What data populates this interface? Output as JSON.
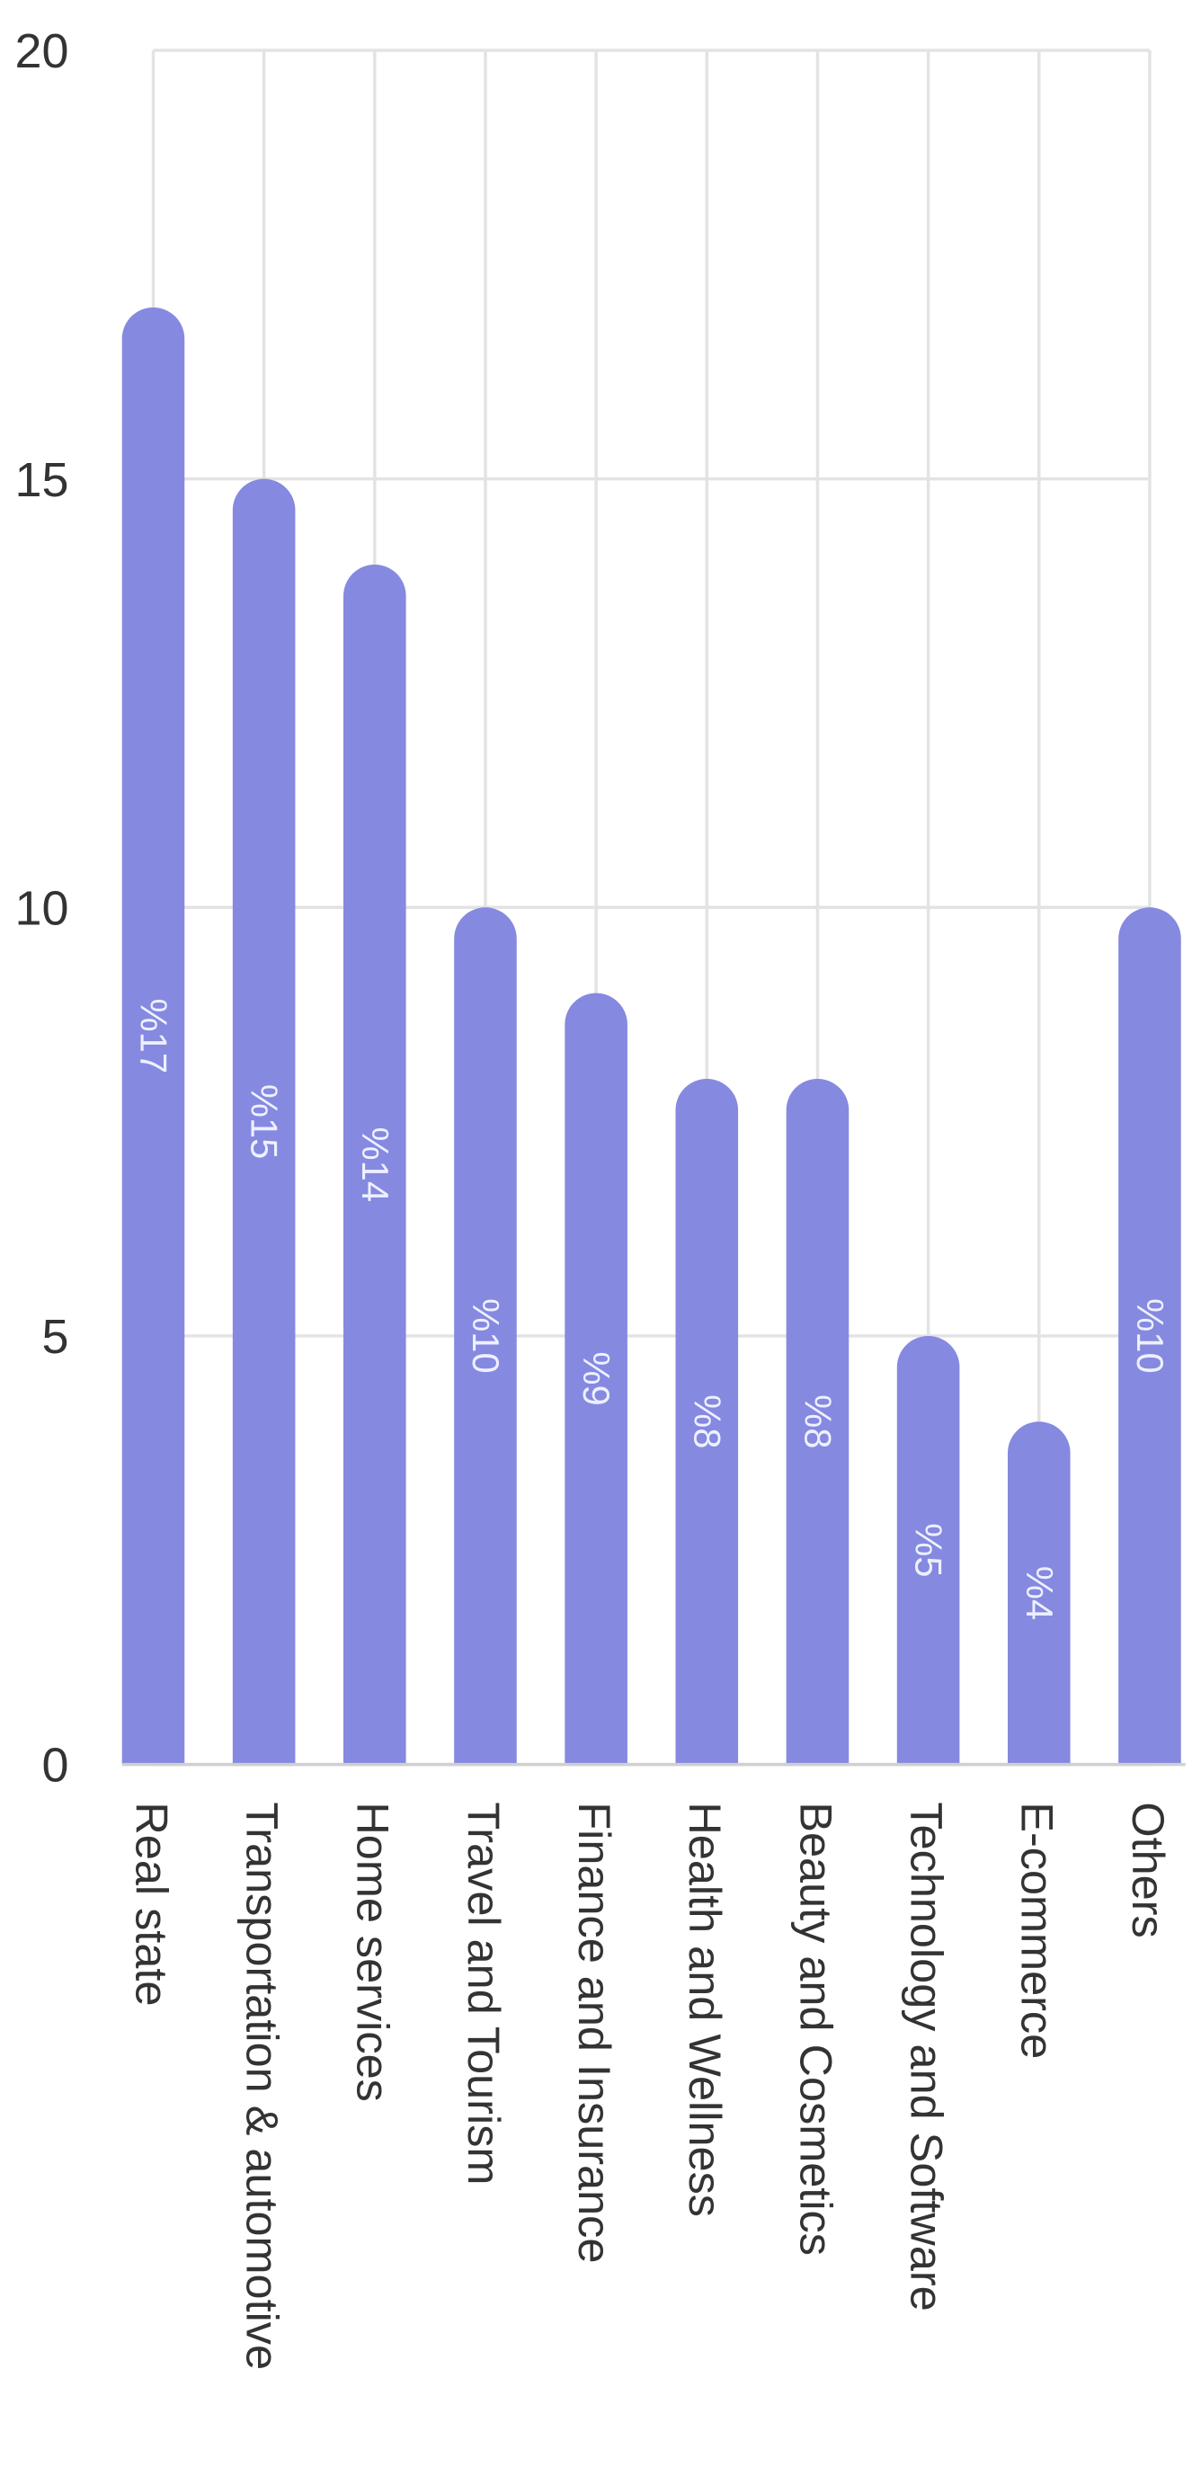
{
  "chart_data": {
    "type": "bar",
    "categories": [
      "Real state",
      "Transportation & automotive",
      "Home services",
      "Travel and Tourism",
      "Finance and Insurance",
      "Health and Wellness",
      "Beauty and Cosmetics",
      "Technology and Software",
      "E-commerce",
      "Others"
    ],
    "values": [
      17,
      15,
      14,
      10,
      9,
      8,
      8,
      5,
      4,
      10
    ],
    "value_labels": [
      "%17",
      "%15",
      "%14",
      "%10",
      "%9",
      "%8",
      "%8",
      "%5",
      "%4",
      "%10"
    ],
    "color": "#8589e0",
    "ylim": [
      0,
      20
    ],
    "yticks": [
      0,
      5,
      10,
      15,
      20
    ],
    "grid": true
  }
}
